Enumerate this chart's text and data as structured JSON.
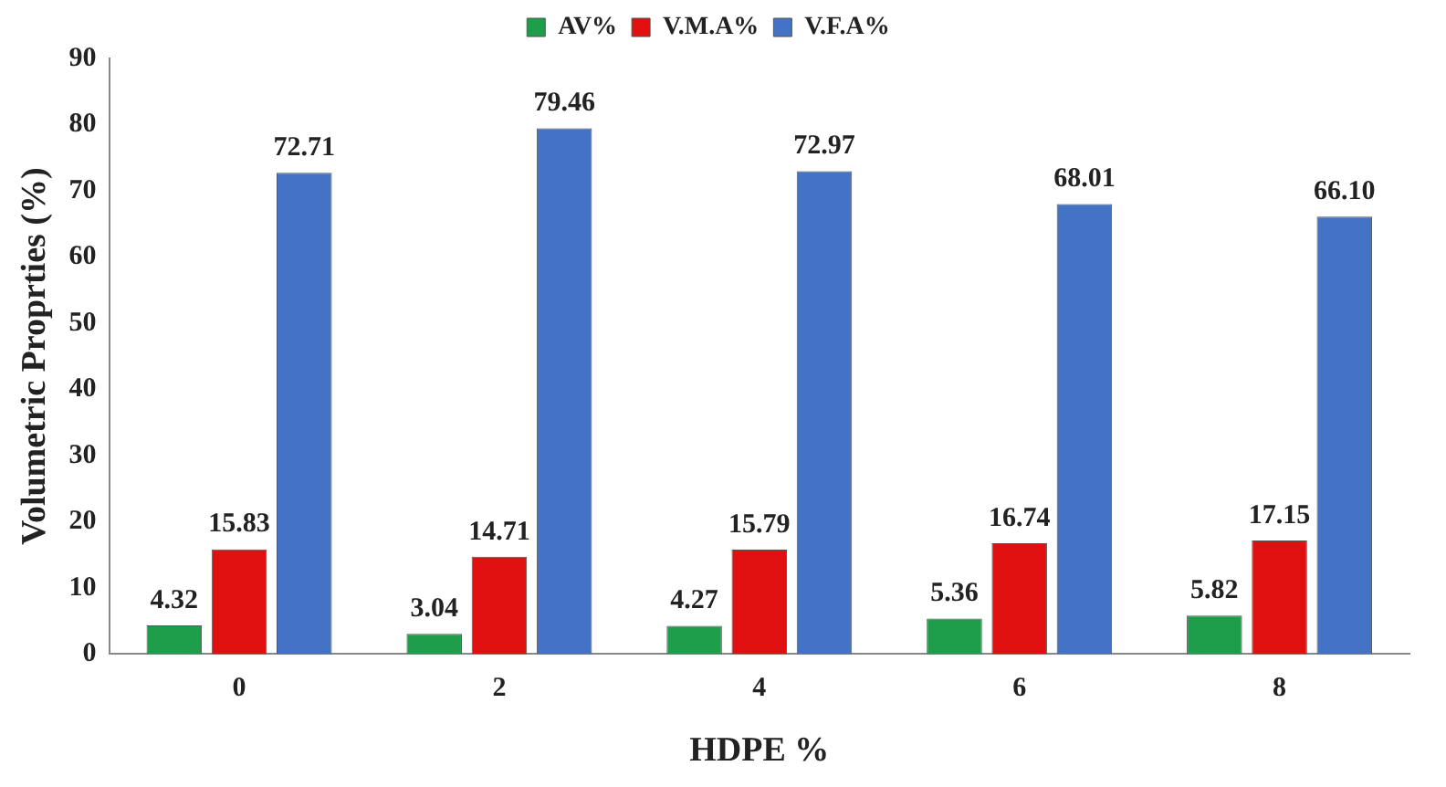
{
  "chart_data": {
    "type": "bar",
    "xlabel": "HDPE %",
    "ylabel": "Volumetric Proprties (%)",
    "categories": [
      "0",
      "2",
      "4",
      "6",
      "8"
    ],
    "series": [
      {
        "name": "AV%",
        "color": "#1e9e4a",
        "values": [
          4.32,
          3.04,
          4.27,
          5.36,
          5.82
        ],
        "value_labels": [
          "4.32",
          "3.04",
          "4.27",
          "5.36",
          "5.82"
        ]
      },
      {
        "name": "V.M.A%",
        "color": "#e01010",
        "values": [
          15.83,
          14.71,
          15.79,
          16.74,
          17.15
        ],
        "value_labels": [
          "15.83",
          "14.71",
          "15.79",
          "16.74",
          "17.15"
        ]
      },
      {
        "name": "V.F.A%",
        "color": "#4472c4",
        "values": [
          72.71,
          79.46,
          72.97,
          68.01,
          66.1
        ],
        "value_labels": [
          "72.71",
          "79.46",
          "72.97",
          "68.01",
          "66.10"
        ]
      }
    ],
    "ylim": [
      0,
      90
    ],
    "yticks": [
      0,
      10,
      20,
      30,
      40,
      50,
      60,
      70,
      80,
      90
    ],
    "grid": false,
    "legend": "top"
  }
}
